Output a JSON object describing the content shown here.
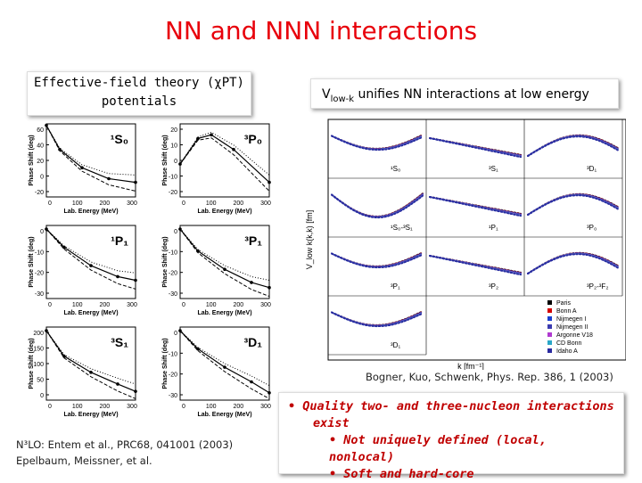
{
  "slide": {
    "title": "NN and NNN interactions",
    "left_box": {
      "line1": "Effective-field theory (χPT)",
      "line2": "potentials"
    },
    "right_box": {
      "v": "V",
      "sub": "low-k",
      "text": " unifies NN interactions at low energy"
    },
    "left_citation": {
      "line1": "N³LO: Entem et al., PRC68, 041001 (2003)",
      "line2": "Epelbaum, Meissner, et al."
    },
    "right_citation": "Bogner, Kuo, Schwenk, Phys. Rep. 386, 1 (2003)",
    "bullets": {
      "b1": "• Quality two- and three-nucleon interactions",
      "b1b": "exist",
      "b2": "• Not uniquely defined (local, nonlocal)",
      "b3": "• Soft and hard-core"
    }
  },
  "left_figure": {
    "ylabel": "Phase Shift (deg)",
    "xlabel": "Lab. Energy (MeV)",
    "panels": [
      {
        "label": "¹S₀",
        "yticks": [
          "60",
          "40",
          "20",
          "0",
          "-20"
        ],
        "xticks": [
          "0",
          "100",
          "200",
          "300"
        ]
      },
      {
        "label": "³P₀",
        "yticks": [
          "20",
          "10",
          "0",
          "-10",
          "-20"
        ],
        "xticks": [
          "0",
          "100",
          "200",
          "300"
        ]
      },
      {
        "label": "¹P₁",
        "yticks": [
          "0",
          "-10",
          "-20",
          "-30"
        ],
        "xticks": [
          "0",
          "100",
          "200",
          "300"
        ]
      },
      {
        "label": "³P₁",
        "yticks": [
          "0",
          "-10",
          "-20",
          "-30"
        ],
        "xticks": [
          "0",
          "100",
          "200",
          "300"
        ]
      },
      {
        "label": "³S₁",
        "yticks": [
          "200",
          "150",
          "100",
          "50",
          "0"
        ],
        "xticks": [
          "0",
          "100",
          "200",
          "300"
        ]
      },
      {
        "label": "³D₁",
        "yticks": [
          "0",
          "-10",
          "-20",
          "-30"
        ],
        "xticks": [
          "0",
          "100",
          "200",
          "300"
        ]
      }
    ]
  },
  "right_figure": {
    "ylabel": "V_low k(k,k) [fm]",
    "xlabel": "k [fm⁻¹]",
    "channel_labels": [
      "¹S₀",
      "³S₁",
      "³D₁",
      "¹S₀-³S₁",
      "¹P₁",
      "³P₀",
      "³P₁",
      "³P₂",
      "³P₂-³F₂",
      "³D₁"
    ],
    "legend": [
      "Paris",
      "Bonn A",
      "Nijmegen I",
      "Nijmegen II",
      "Argonne V18",
      "CD Bonn",
      "Idaho A"
    ],
    "legend_colors": [
      "#000000",
      "#d40000",
      "#1a3fd0",
      "#3b3bb0",
      "#b03ad0",
      "#2aa7c8",
      "#2a2aa0"
    ]
  }
}
